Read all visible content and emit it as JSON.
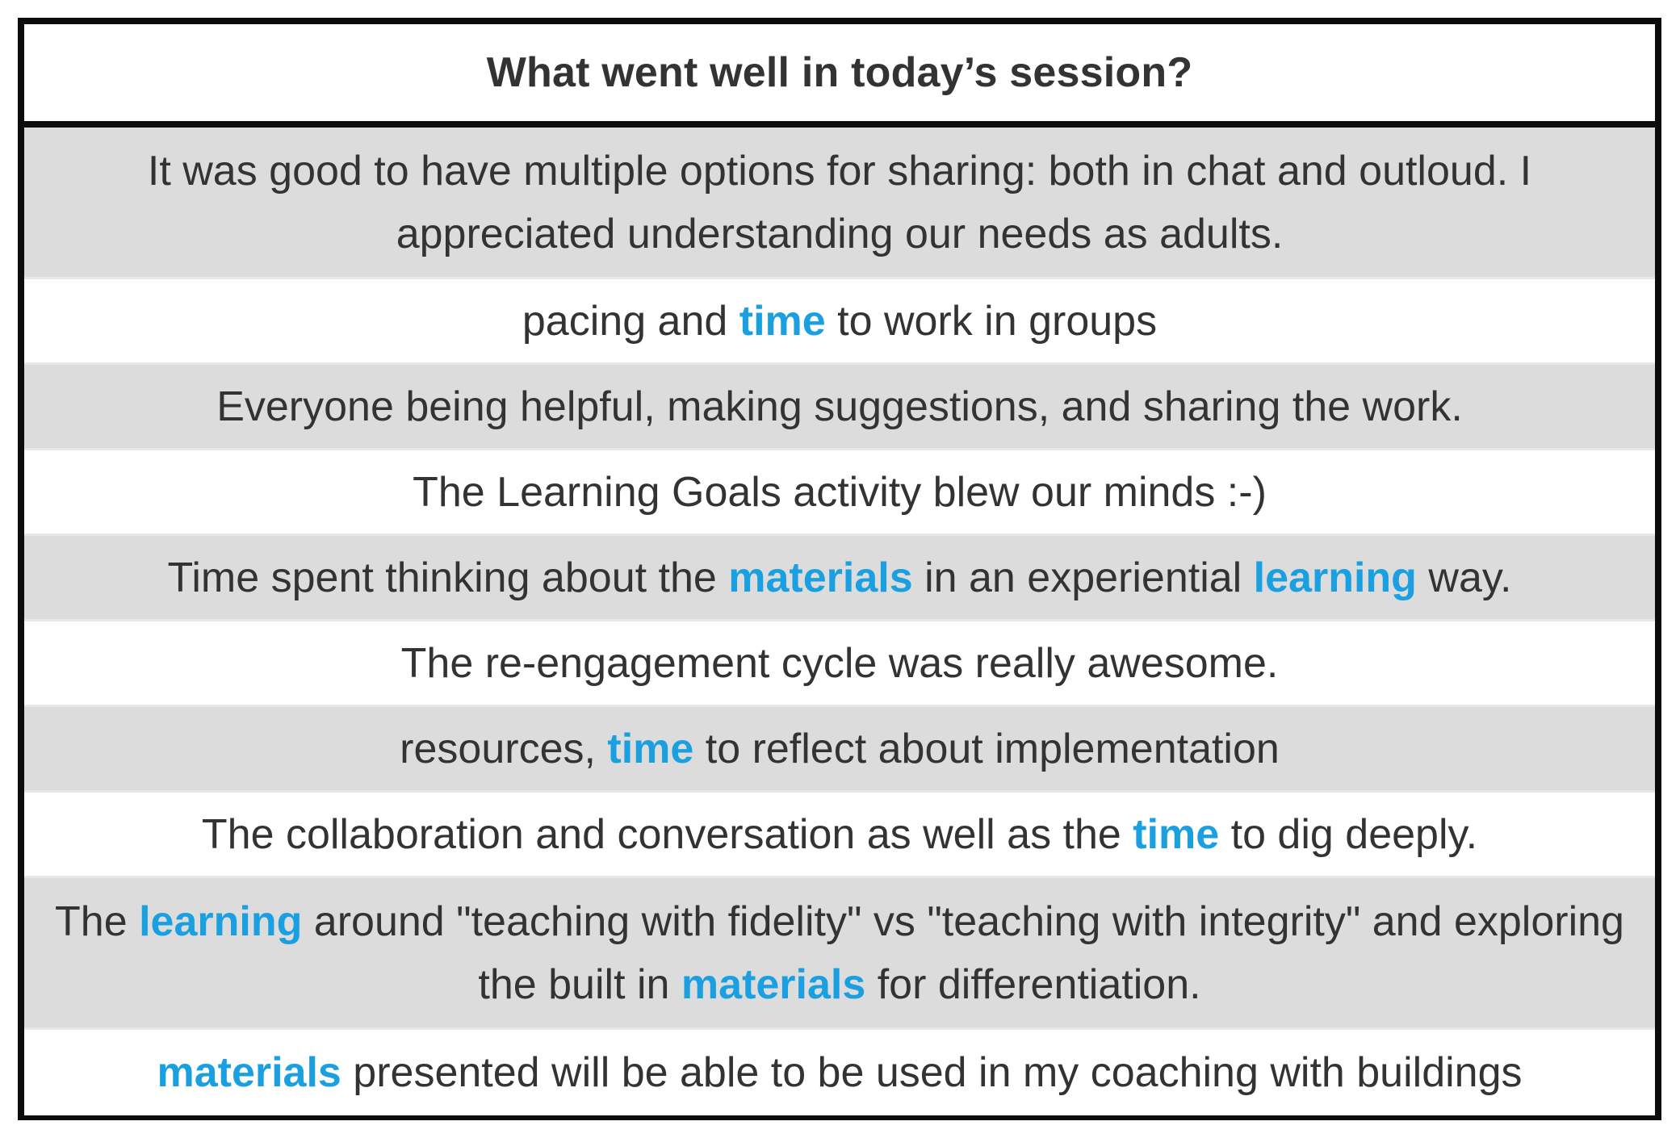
{
  "header": {
    "title": "What went well in today’s session?"
  },
  "colors": {
    "highlight": "#1aa0e0",
    "text": "#333333",
    "shaded_row": "#dcdcdc",
    "border": "#0d0d0d"
  },
  "responses": [
    {
      "segments": [
        {
          "text": "It was good to have multiple options for sharing: both in chat and outloud. I appreciated understanding our needs as adults.",
          "highlight": false
        }
      ]
    },
    {
      "segments": [
        {
          "text": "pacing and ",
          "highlight": false
        },
        {
          "text": "time",
          "highlight": true
        },
        {
          "text": " to work in groups",
          "highlight": false
        }
      ]
    },
    {
      "segments": [
        {
          "text": "Everyone being helpful, making suggestions, and sharing the work.",
          "highlight": false
        }
      ]
    },
    {
      "segments": [
        {
          "text": "The Learning Goals activity blew our minds :-)",
          "highlight": false
        }
      ]
    },
    {
      "segments": [
        {
          "text": "Time spent thinking about the ",
          "highlight": false
        },
        {
          "text": "materials",
          "highlight": true
        },
        {
          "text": " in an experiential ",
          "highlight": false
        },
        {
          "text": "learning",
          "highlight": true
        },
        {
          "text": " way.",
          "highlight": false
        }
      ]
    },
    {
      "segments": [
        {
          "text": "The re-engagement cycle was really awesome.",
          "highlight": false
        }
      ]
    },
    {
      "segments": [
        {
          "text": "resources, ",
          "highlight": false
        },
        {
          "text": "time",
          "highlight": true
        },
        {
          "text": " to reflect about implementation",
          "highlight": false
        }
      ]
    },
    {
      "segments": [
        {
          "text": "The collaboration and conversation as well as the ",
          "highlight": false
        },
        {
          "text": "time",
          "highlight": true
        },
        {
          "text": " to dig deeply.",
          "highlight": false
        }
      ]
    },
    {
      "segments": [
        {
          "text": "The ",
          "highlight": false
        },
        {
          "text": "learning",
          "highlight": true
        },
        {
          "text": " around \"teaching with fidelity\" vs \"teaching with integrity\" and exploring the built in ",
          "highlight": false
        },
        {
          "text": "materials",
          "highlight": true
        },
        {
          "text": " for differentiation.",
          "highlight": false
        }
      ]
    },
    {
      "segments": [
        {
          "text": "materials",
          "highlight": true
        },
        {
          "text": " presented will be able to be used in my coaching with buildings",
          "highlight": false
        }
      ]
    }
  ]
}
